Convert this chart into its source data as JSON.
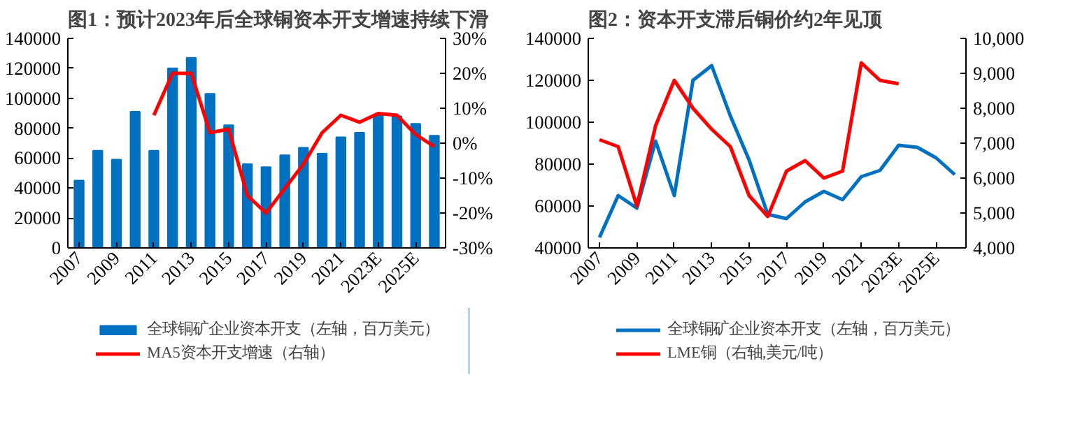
{
  "chart_data": [
    {
      "type": "bar",
      "title": "图1：预计2023年后全球铜资本开支增速持续下滑",
      "categories": [
        "2007",
        null,
        "2009",
        null,
        "2011",
        null,
        "2013",
        null,
        "2015",
        null,
        "2017",
        null,
        "2019",
        null,
        "2021",
        null,
        "2023E",
        null,
        "2025E",
        null
      ],
      "series": [
        {
          "name": "全球铜矿企业资本开支（左轴，百万美元）",
          "color": "#0070c0",
          "values": [
            45000,
            65000,
            59000,
            91000,
            65000,
            120000,
            127000,
            103000,
            82000,
            56000,
            54000,
            62000,
            67000,
            63000,
            74000,
            77000,
            89000,
            88000,
            83000,
            75000
          ]
        },
        {
          "name": "MA5资本开支增速（右轴）",
          "type": "line",
          "axis": "y2",
          "color": "#ff0000",
          "values": [
            null,
            null,
            null,
            null,
            8,
            20,
            20,
            3,
            4,
            -15,
            -20,
            -13,
            -6,
            3,
            8,
            6,
            8.5,
            8,
            2.5,
            -1
          ]
        }
      ],
      "ylim": [
        0,
        140000
      ],
      "yticks": [
        0,
        20000,
        40000,
        60000,
        80000,
        100000,
        120000,
        140000
      ],
      "y2lim": [
        -30,
        30
      ],
      "y2ticks": [
        {
          "value": -30,
          "label": "-30%"
        },
        {
          "value": -20,
          "label": "-20%"
        },
        {
          "value": -10,
          "label": "-10%"
        },
        {
          "value": 0,
          "label": "0%"
        },
        {
          "value": 10,
          "label": "10%"
        },
        {
          "value": 20,
          "label": "20%"
        },
        {
          "value": 30,
          "label": "30%"
        }
      ],
      "legend": "bottom"
    },
    {
      "type": "line",
      "title": "图2：资本开支滞后铜价约2年见顶",
      "categories": [
        "2007",
        null,
        "2009",
        null,
        "2011",
        null,
        "2013",
        null,
        "2015",
        null,
        "2017",
        null,
        "2019",
        null,
        "2021",
        null,
        "2023E",
        null,
        "2025E",
        null
      ],
      "series": [
        {
          "name": "全球铜矿企业资本开支（左轴，百万美元）",
          "color": "#0070c0",
          "values": [
            45000,
            65000,
            59000,
            91000,
            65000,
            120000,
            127000,
            103000,
            82000,
            56000,
            54000,
            62000,
            67000,
            63000,
            74000,
            77000,
            89000,
            88000,
            83000,
            75000
          ]
        },
        {
          "name": "LME铜（右轴,美元/吨）",
          "axis": "y2",
          "color": "#ff0000",
          "values": [
            7100,
            6900,
            5200,
            7500,
            8800,
            8000,
            7400,
            6900,
            5500,
            4900,
            6200,
            6500,
            6000,
            6200,
            9300,
            8800,
            8700,
            null,
            null,
            null
          ]
        }
      ],
      "ylim": [
        40000,
        140000
      ],
      "yticks": [
        40000,
        60000,
        80000,
        100000,
        120000,
        140000
      ],
      "y2lim": [
        4000,
        10000
      ],
      "y2ticks": [
        {
          "value": 4000,
          "label": "4,000"
        },
        {
          "value": 5000,
          "label": "5,000"
        },
        {
          "value": 6000,
          "label": "6,000"
        },
        {
          "value": 7000,
          "label": "7,000"
        },
        {
          "value": 8000,
          "label": "8,000"
        },
        {
          "value": 9000,
          "label": "9,000"
        },
        {
          "value": 10000,
          "label": "10,000"
        }
      ],
      "legend": "bottom"
    }
  ]
}
